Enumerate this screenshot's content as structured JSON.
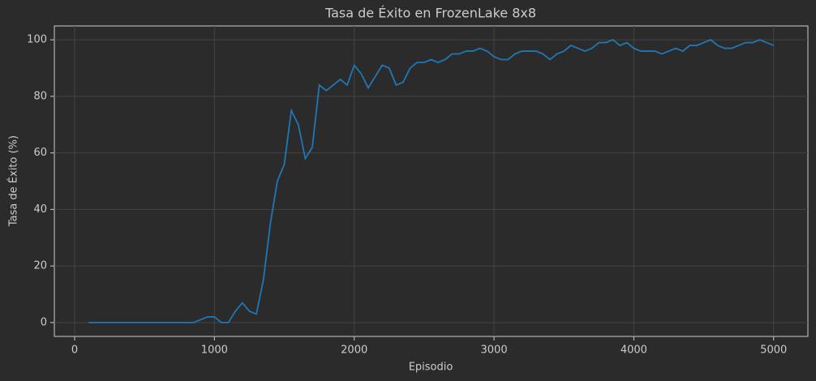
{
  "chart_data": {
    "type": "line",
    "title": "Tasa de Éxito en FrozenLake 8x8",
    "x_label": "Episodio",
    "y_label": "Tasa de Éxito (%)",
    "x": [
      100,
      150,
      200,
      250,
      300,
      350,
      400,
      450,
      500,
      550,
      600,
      650,
      700,
      750,
      800,
      850,
      900,
      950,
      1000,
      1050,
      1100,
      1150,
      1200,
      1250,
      1300,
      1350,
      1400,
      1450,
      1500,
      1550,
      1600,
      1650,
      1700,
      1750,
      1800,
      1850,
      1900,
      1950,
      2000,
      2050,
      2100,
      2150,
      2200,
      2250,
      2300,
      2350,
      2400,
      2450,
      2500,
      2550,
      2600,
      2650,
      2700,
      2750,
      2800,
      2850,
      2900,
      2950,
      3000,
      3050,
      3100,
      3150,
      3200,
      3250,
      3300,
      3350,
      3400,
      3450,
      3500,
      3550,
      3600,
      3650,
      3700,
      3750,
      3800,
      3850,
      3900,
      3950,
      4000,
      4050,
      4100,
      4150,
      4200,
      4250,
      4300,
      4350,
      4400,
      4450,
      4500,
      4550,
      4600,
      4650,
      4700,
      4750,
      4800,
      4850,
      4900,
      4950,
      5000
    ],
    "series": [
      {
        "color": "#1f77b4",
        "values": [
          0,
          0,
          0,
          0,
          0,
          0,
          0,
          0,
          0,
          0,
          0,
          0,
          0,
          0,
          0,
          0,
          1,
          2,
          2,
          0,
          0,
          4,
          7,
          4,
          3,
          15,
          35,
          50,
          56,
          75,
          70,
          58,
          62,
          84,
          82,
          84,
          86,
          84,
          91,
          88,
          83,
          87,
          91,
          90,
          84,
          85,
          90,
          92,
          92,
          93,
          92,
          93,
          95,
          95,
          96,
          96,
          97,
          96,
          94,
          93,
          93,
          95,
          96,
          96,
          96,
          95,
          93,
          95,
          96,
          98,
          97,
          96,
          97,
          99,
          99,
          100,
          98,
          99,
          97,
          96,
          96,
          96,
          95,
          96,
          97,
          96,
          98,
          98,
          99,
          100,
          98,
          97,
          97,
          98,
          99,
          99,
          100,
          99,
          98
        ]
      }
    ],
    "xlim": [
      -145,
      5245
    ],
    "ylim": [
      -4.9,
      104.9
    ],
    "xticks": [
      0,
      1000,
      2000,
      3000,
      4000,
      5000
    ],
    "yticks": [
      0,
      20,
      40,
      60,
      80,
      100
    ],
    "grid": true
  }
}
